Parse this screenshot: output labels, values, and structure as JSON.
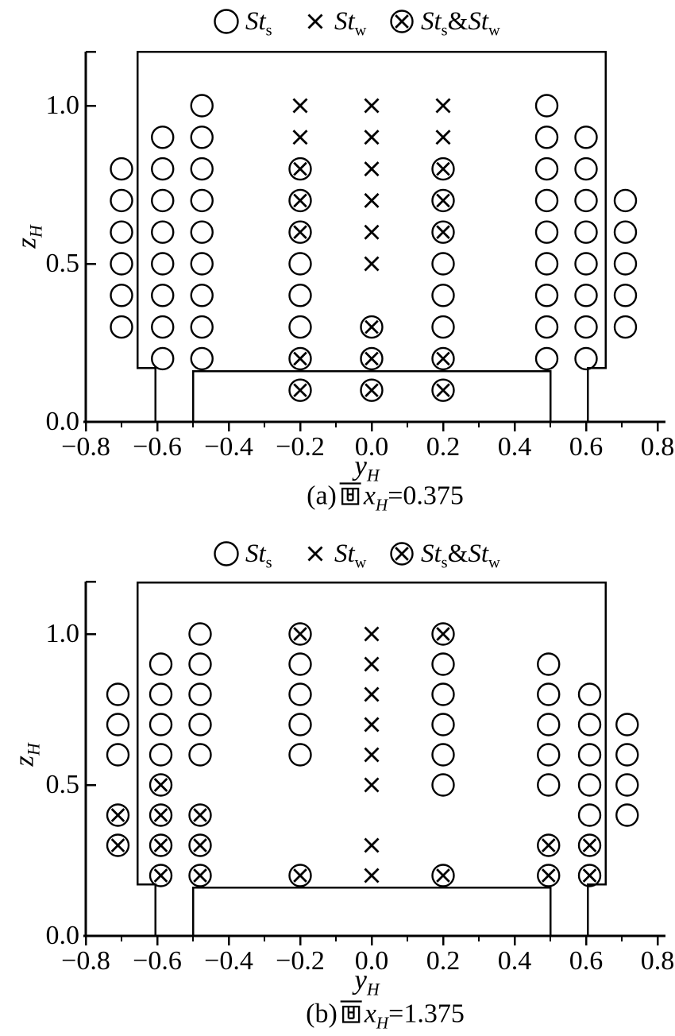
{
  "colors": {
    "ink": "#000000",
    "background": "#ffffff"
  },
  "legend": {
    "items": [
      {
        "marker": "circle",
        "name": "legend-item-sts",
        "label": [
          {
            "t": "St",
            "s": "i"
          },
          {
            "t": "s",
            "s": "sub"
          }
        ]
      },
      {
        "marker": "cross",
        "name": "legend-item-stw",
        "label": [
          {
            "t": "St",
            "s": "i"
          },
          {
            "t": "w",
            "s": "sub"
          }
        ]
      },
      {
        "marker": "circle-cross",
        "name": "legend-item-sts-stw",
        "label": [
          {
            "t": "St",
            "s": "i"
          },
          {
            "t": "s",
            "s": "sub"
          },
          {
            "t": "&"
          },
          {
            "t": "St",
            "s": "i"
          },
          {
            "t": "w",
            "s": "sub"
          }
        ]
      }
    ]
  },
  "chart_data": [
    {
      "id": "a",
      "type": "scatter",
      "caption": [
        {
          "t": "(a)"
        },
        {
          "t": "面",
          "s": "cjk"
        },
        {
          "t": "x",
          "s": "i"
        },
        {
          "t": "H",
          "s": "subi"
        },
        {
          "t": "=0.375"
        }
      ],
      "xlabel": [
        {
          "t": "y",
          "s": "i"
        },
        {
          "t": "H",
          "s": "subi"
        }
      ],
      "ylabel": [
        {
          "t": "z",
          "s": "i"
        },
        {
          "t": "H",
          "s": "subi"
        }
      ],
      "xlim": [
        -0.8,
        0.8
      ],
      "ylim": [
        0,
        1.17
      ],
      "grid": false,
      "xticks": {
        "values": [
          -0.8,
          -0.6,
          -0.4,
          -0.2,
          0,
          0.2,
          0.4,
          0.6,
          0.8
        ],
        "labels": [
          "−0.8",
          "−0.6",
          "−0.4",
          "−0.2",
          "0.0",
          "0.2",
          "0.4",
          "0.6",
          "0.8"
        ],
        "minor": [
          -0.7,
          -0.5,
          -0.3,
          -0.1,
          0.1,
          0.3,
          0.5,
          0.7
        ]
      },
      "yticks": {
        "values": [
          0,
          0.5,
          1
        ],
        "labels": [
          "0.0",
          "0.5",
          "1.0"
        ],
        "axis_end_tick": true
      },
      "outline": {
        "walls": [
          [
            -0.605,
            0
          ],
          [
            -0.605,
            0.17
          ],
          [
            -0.655,
            0.17
          ],
          [
            -0.655,
            1.17
          ],
          [
            0.655,
            1.17
          ],
          [
            0.655,
            0.17
          ],
          [
            0.605,
            0.17
          ],
          [
            0.605,
            0
          ]
        ],
        "platform": [
          [
            -0.5,
            0
          ],
          [
            -0.5,
            0.16
          ],
          [
            0.5,
            0.16
          ],
          [
            0.5,
            0
          ]
        ]
      },
      "series": [
        {
          "name": "Sts",
          "marker": "circle",
          "points": [
            [
              -0.7,
              0.3
            ],
            [
              -0.7,
              0.4
            ],
            [
              -0.7,
              0.5
            ],
            [
              -0.7,
              0.6
            ],
            [
              -0.7,
              0.7
            ],
            [
              -0.7,
              0.8
            ],
            [
              -0.585,
              0.2
            ],
            [
              -0.585,
              0.3
            ],
            [
              -0.585,
              0.4
            ],
            [
              -0.585,
              0.5
            ],
            [
              -0.585,
              0.6
            ],
            [
              -0.585,
              0.7
            ],
            [
              -0.585,
              0.8
            ],
            [
              -0.585,
              0.9
            ],
            [
              -0.475,
              0.2
            ],
            [
              -0.475,
              0.3
            ],
            [
              -0.475,
              0.4
            ],
            [
              -0.475,
              0.5
            ],
            [
              -0.475,
              0.6
            ],
            [
              -0.475,
              0.7
            ],
            [
              -0.475,
              0.8
            ],
            [
              -0.475,
              0.9
            ],
            [
              -0.475,
              1.0
            ],
            [
              -0.2,
              0.3
            ],
            [
              -0.2,
              0.4
            ],
            [
              -0.2,
              0.5
            ],
            [
              0.2,
              0.3
            ],
            [
              0.2,
              0.4
            ],
            [
              0.2,
              0.5
            ],
            [
              0.49,
              0.2
            ],
            [
              0.49,
              0.3
            ],
            [
              0.49,
              0.4
            ],
            [
              0.49,
              0.5
            ],
            [
              0.49,
              0.6
            ],
            [
              0.49,
              0.7
            ],
            [
              0.49,
              0.8
            ],
            [
              0.49,
              0.9
            ],
            [
              0.49,
              1.0
            ],
            [
              0.6,
              0.2
            ],
            [
              0.6,
              0.3
            ],
            [
              0.6,
              0.4
            ],
            [
              0.6,
              0.5
            ],
            [
              0.6,
              0.6
            ],
            [
              0.6,
              0.7
            ],
            [
              0.6,
              0.8
            ],
            [
              0.6,
              0.9
            ],
            [
              0.71,
              0.3
            ],
            [
              0.71,
              0.4
            ],
            [
              0.71,
              0.5
            ],
            [
              0.71,
              0.6
            ],
            [
              0.71,
              0.7
            ]
          ]
        },
        {
          "name": "Stw",
          "marker": "cross",
          "points": [
            [
              -0.2,
              0.9
            ],
            [
              -0.2,
              1.0
            ],
            [
              0,
              0.5
            ],
            [
              0,
              0.6
            ],
            [
              0,
              0.7
            ],
            [
              0,
              0.8
            ],
            [
              0,
              0.9
            ],
            [
              0,
              1.0
            ],
            [
              0.2,
              0.9
            ],
            [
              0.2,
              1.0
            ]
          ]
        },
        {
          "name": "Sts&Stw",
          "marker": "circle-cross",
          "points": [
            [
              -0.2,
              0.1
            ],
            [
              -0.2,
              0.2
            ],
            [
              -0.2,
              0.6
            ],
            [
              -0.2,
              0.7
            ],
            [
              -0.2,
              0.8
            ],
            [
              0,
              0.1
            ],
            [
              0,
              0.2
            ],
            [
              0,
              0.3
            ],
            [
              0.2,
              0.1
            ],
            [
              0.2,
              0.2
            ],
            [
              0.2,
              0.6
            ],
            [
              0.2,
              0.7
            ],
            [
              0.2,
              0.8
            ]
          ]
        }
      ]
    },
    {
      "id": "b",
      "type": "scatter",
      "caption": [
        {
          "t": "(b)"
        },
        {
          "t": "面",
          "s": "cjk"
        },
        {
          "t": "x",
          "s": "i"
        },
        {
          "t": "H",
          "s": "subi"
        },
        {
          "t": "=1.375"
        }
      ],
      "xlabel": [
        {
          "t": "y",
          "s": "i"
        },
        {
          "t": "H",
          "s": "subi"
        }
      ],
      "ylabel": [
        {
          "t": "z",
          "s": "i"
        },
        {
          "t": "H",
          "s": "subi"
        }
      ],
      "xlim": [
        -0.8,
        0.8
      ],
      "ylim": [
        0,
        1.17
      ],
      "grid": false,
      "xticks": {
        "values": [
          -0.8,
          -0.6,
          -0.4,
          -0.2,
          0,
          0.2,
          0.4,
          0.6,
          0.8
        ],
        "labels": [
          "−0.8",
          "−0.6",
          "−0.4",
          "−0.2",
          "0.0",
          "0.2",
          "0.4",
          "0.6",
          "0.8"
        ],
        "minor": [
          -0.7,
          -0.5,
          -0.3,
          -0.1,
          0.1,
          0.3,
          0.5,
          0.7
        ]
      },
      "yticks": {
        "values": [
          0,
          0.5,
          1
        ],
        "labels": [
          "0.0",
          "0.5",
          "1.0"
        ],
        "axis_end_tick": true
      },
      "outline": {
        "walls": [
          [
            -0.605,
            0
          ],
          [
            -0.605,
            0.17
          ],
          [
            -0.655,
            0.17
          ],
          [
            -0.655,
            1.17
          ],
          [
            0.655,
            1.17
          ],
          [
            0.655,
            0.17
          ],
          [
            0.605,
            0.17
          ],
          [
            0.605,
            0
          ]
        ],
        "platform": [
          [
            -0.5,
            0
          ],
          [
            -0.5,
            0.16
          ],
          [
            0.5,
            0.16
          ],
          [
            0.5,
            0
          ]
        ]
      },
      "series": [
        {
          "name": "Sts",
          "marker": "circle",
          "points": [
            [
              -0.71,
              0.6
            ],
            [
              -0.71,
              0.7
            ],
            [
              -0.71,
              0.8
            ],
            [
              -0.59,
              0.6
            ],
            [
              -0.59,
              0.7
            ],
            [
              -0.59,
              0.8
            ],
            [
              -0.59,
              0.9
            ],
            [
              -0.48,
              0.6
            ],
            [
              -0.48,
              0.7
            ],
            [
              -0.48,
              0.8
            ],
            [
              -0.48,
              0.9
            ],
            [
              -0.48,
              1.0
            ],
            [
              -0.2,
              0.6
            ],
            [
              -0.2,
              0.7
            ],
            [
              -0.2,
              0.8
            ],
            [
              -0.2,
              0.9
            ],
            [
              0.2,
              0.5
            ],
            [
              0.2,
              0.6
            ],
            [
              0.2,
              0.7
            ],
            [
              0.2,
              0.8
            ],
            [
              0.2,
              0.9
            ],
            [
              0.495,
              0.5
            ],
            [
              0.495,
              0.6
            ],
            [
              0.495,
              0.7
            ],
            [
              0.495,
              0.8
            ],
            [
              0.495,
              0.9
            ],
            [
              0.61,
              0.4
            ],
            [
              0.61,
              0.5
            ],
            [
              0.61,
              0.6
            ],
            [
              0.61,
              0.7
            ],
            [
              0.61,
              0.8
            ],
            [
              0.715,
              0.4
            ],
            [
              0.715,
              0.5
            ],
            [
              0.715,
              0.6
            ],
            [
              0.715,
              0.7
            ]
          ]
        },
        {
          "name": "Stw",
          "marker": "cross",
          "points": [
            [
              0,
              0.2
            ],
            [
              0,
              0.3
            ],
            [
              0,
              0.5
            ],
            [
              0,
              0.6
            ],
            [
              0,
              0.7
            ],
            [
              0,
              0.8
            ],
            [
              0,
              0.9
            ],
            [
              0,
              1.0
            ]
          ]
        },
        {
          "name": "Sts&Stw",
          "marker": "circle-cross",
          "points": [
            [
              -0.71,
              0.3
            ],
            [
              -0.71,
              0.4
            ],
            [
              -0.59,
              0.2
            ],
            [
              -0.59,
              0.3
            ],
            [
              -0.59,
              0.4
            ],
            [
              -0.59,
              0.5
            ],
            [
              -0.48,
              0.2
            ],
            [
              -0.48,
              0.3
            ],
            [
              -0.48,
              0.4
            ],
            [
              -0.2,
              0.2
            ],
            [
              -0.2,
              1.0
            ],
            [
              0.2,
              0.2
            ],
            [
              0.2,
              1.0
            ],
            [
              0.495,
              0.2
            ],
            [
              0.495,
              0.3
            ],
            [
              0.61,
              0.2
            ],
            [
              0.61,
              0.3
            ]
          ]
        }
      ]
    }
  ]
}
